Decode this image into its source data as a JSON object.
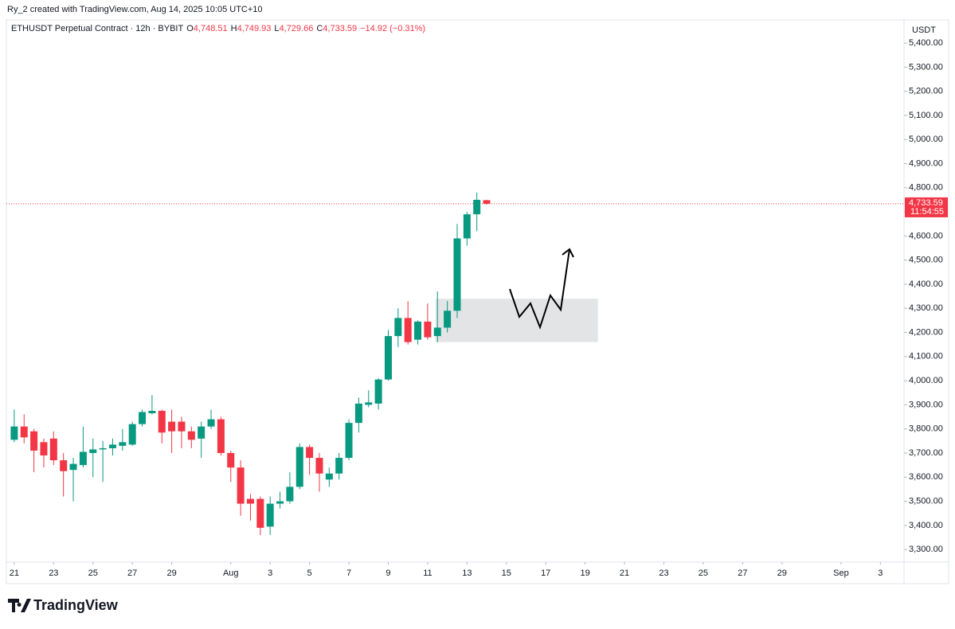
{
  "header": {
    "credit": "Ry_2 created with TradingView.com, Aug 14, 2025 10:05 UTC+10",
    "symbol": "ETHUSDT Perpetual Contract · 12h · BYBIT",
    "ohlc": [
      [
        "O",
        "4,748.51"
      ],
      [
        "H",
        "4,749.93"
      ],
      [
        "L",
        "4,729.66"
      ],
      [
        "C",
        "4,733.59"
      ]
    ],
    "change": "−14.92 (−0.31%)"
  },
  "chart_data": {
    "type": "candlestick",
    "currency": "USDT",
    "up_color": "#089981",
    "down_color": "#f23645",
    "open": [
      3755,
      3810,
      3790,
      3745,
      3760,
      3670,
      3630,
      3650,
      3700,
      3715,
      3720,
      3730,
      3735,
      3820,
      3865,
      3875,
      3830,
      3830,
      3790,
      3760,
      3810,
      3840,
      3700,
      3640,
      3510,
      3510,
      3395,
      3490,
      3500,
      3560,
      3725,
      3680,
      3590,
      3615,
      3680,
      3825,
      3900,
      3905,
      4005,
      4185,
      4260,
      4170,
      4245,
      4185,
      4220,
      4290,
      4590,
      4690,
      4748.51
    ],
    "high": [
      3880,
      3860,
      3800,
      3760,
      3790,
      3700,
      3680,
      3810,
      3760,
      3750,
      3760,
      3800,
      3830,
      3880,
      3940,
      3880,
      3880,
      3850,
      3810,
      3830,
      3880,
      3850,
      3710,
      3670,
      3530,
      3520,
      3520,
      3540,
      3620,
      3740,
      3735,
      3700,
      3640,
      3700,
      3840,
      3930,
      3960,
      4010,
      4210,
      4300,
      4330,
      4250,
      4320,
      4370,
      4330,
      4650,
      4700,
      4780,
      4749.93
    ],
    "low": [
      3745,
      3740,
      3620,
      3640,
      3650,
      3520,
      3500,
      3640,
      3600,
      3580,
      3690,
      3710,
      3730,
      3810,
      3860,
      3740,
      3700,
      3720,
      3720,
      3680,
      3800,
      3690,
      3580,
      3440,
      3420,
      3360,
      3360,
      3470,
      3490,
      3550,
      3610,
      3540,
      3560,
      3590,
      3670,
      3785,
      3890,
      3880,
      4000,
      4140,
      4150,
      4150,
      4170,
      4160,
      4200,
      4260,
      4560,
      4620,
      4729.66
    ],
    "close": [
      3810,
      3765,
      3710,
      3690,
      3670,
      3625,
      3655,
      3705,
      3715,
      3720,
      3735,
      3745,
      3820,
      3870,
      3875,
      3785,
      3790,
      3790,
      3755,
      3810,
      3840,
      3700,
      3640,
      3490,
      3490,
      3390,
      3490,
      3500,
      3560,
      3725,
      3680,
      3615,
      3615,
      3680,
      3825,
      3905,
      3910,
      4005,
      4185,
      4260,
      4160,
      4245,
      4180,
      4220,
      4290,
      4590,
      4690,
      4750,
      4733.59
    ],
    "last_price": {
      "value": 4733.59,
      "label": "4,733.59",
      "countdown": "11:54:55"
    },
    "zone": {
      "x": [
        42.8,
        59.3
      ],
      "y": [
        4160,
        4340
      ]
    },
    "ylim": [
      3251,
      5496
    ],
    "xlim": [
      -0.8,
      90.4
    ],
    "yticks": [
      {
        "value": 3300,
        "label": "3,300.00"
      },
      {
        "value": 3400,
        "label": "3,400.00"
      },
      {
        "value": 3500,
        "label": "3,500.00"
      },
      {
        "value": 3600,
        "label": "3,600.00"
      },
      {
        "value": 3700,
        "label": "3,700.00"
      },
      {
        "value": 3800,
        "label": "3,800.00"
      },
      {
        "value": 3900,
        "label": "3,900.00"
      },
      {
        "value": 4000,
        "label": "4,000.00"
      },
      {
        "value": 4100,
        "label": "4,100.00"
      },
      {
        "value": 4200,
        "label": "4,200.00"
      },
      {
        "value": 4300,
        "label": "4,300.00"
      },
      {
        "value": 4400,
        "label": "4,400.00"
      },
      {
        "value": 4500,
        "label": "4,500.00"
      },
      {
        "value": 4600,
        "label": "4,600.00"
      },
      {
        "value": 4700,
        "label": "4,700.00"
      },
      {
        "value": 4800,
        "label": "4,800.00"
      },
      {
        "value": 4900,
        "label": "4,900.00"
      },
      {
        "value": 5000,
        "label": "5,000.00"
      },
      {
        "value": 5100,
        "label": "5,100.00"
      },
      {
        "value": 5200,
        "label": "5,200.00"
      },
      {
        "value": 5300,
        "label": "5,300.00"
      },
      {
        "value": 5400,
        "label": "5,400.00"
      }
    ],
    "xticks": [
      {
        "value": 0,
        "label": "21"
      },
      {
        "value": 4,
        "label": "23"
      },
      {
        "value": 8,
        "label": "25"
      },
      {
        "value": 12,
        "label": "27"
      },
      {
        "value": 16,
        "label": "29"
      },
      {
        "value": 22,
        "label": "Aug"
      },
      {
        "value": 26,
        "label": "3"
      },
      {
        "value": 30,
        "label": "5"
      },
      {
        "value": 34,
        "label": "7"
      },
      {
        "value": 38,
        "label": "9"
      },
      {
        "value": 42,
        "label": "11"
      },
      {
        "value": 46,
        "label": "13"
      },
      {
        "value": 50,
        "label": "15"
      },
      {
        "value": 54,
        "label": "17"
      },
      {
        "value": 58,
        "label": "19"
      },
      {
        "value": 62,
        "label": "21"
      },
      {
        "value": 66,
        "label": "23"
      },
      {
        "value": 70,
        "label": "25"
      },
      {
        "value": 74,
        "label": "27"
      },
      {
        "value": 78,
        "label": "29"
      },
      {
        "value": 84,
        "label": "Sep"
      },
      {
        "value": 88,
        "label": "3"
      }
    ]
  },
  "footer": {
    "logo": "TradingView"
  }
}
